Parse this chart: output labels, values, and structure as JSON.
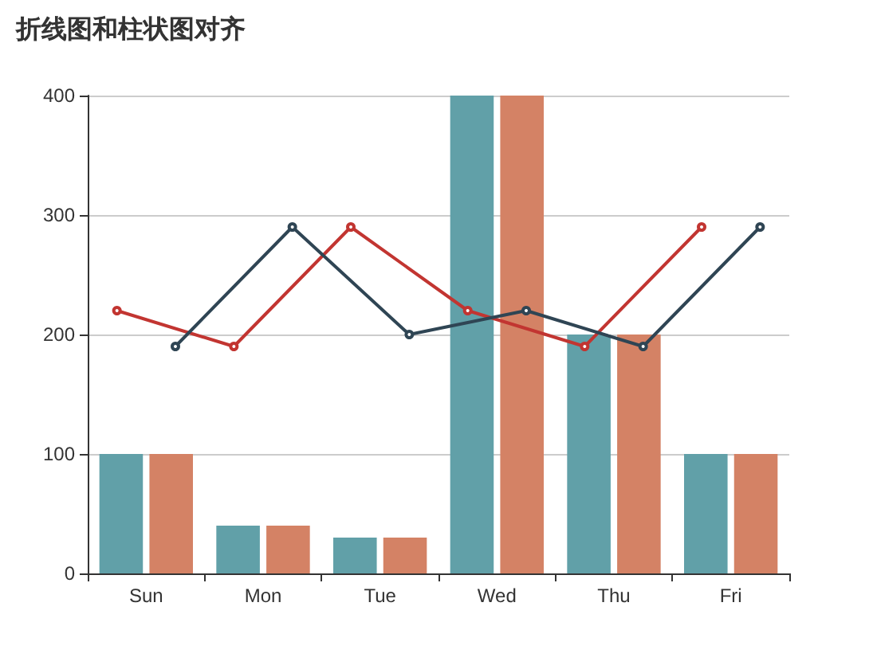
{
  "chart_data": {
    "type": "bar",
    "title": "折线图和柱状图对齐",
    "categories": [
      "Sun",
      "Mon",
      "Tue",
      "Wed",
      "Thu",
      "Fri"
    ],
    "series": [
      {
        "color": "#61a0a8",
        "values": [
          100,
          40,
          30,
          400,
          200,
          100
        ]
      },
      {
        "color": "#d48265",
        "values": [
          100,
          40,
          30,
          400,
          200,
          100
        ]
      },
      {
        "type": "line",
        "color": "#c23531",
        "values": [
          220,
          190,
          290,
          220,
          190,
          290
        ]
      },
      {
        "type": "line",
        "color": "#2f4554",
        "values": [
          190,
          290,
          200,
          220,
          190,
          290
        ]
      }
    ],
    "ylim": [
      0,
      400
    ],
    "yticks": [
      0,
      100,
      200,
      300,
      400
    ],
    "grid": "y",
    "marker": "circle",
    "line_style": "solid"
  }
}
